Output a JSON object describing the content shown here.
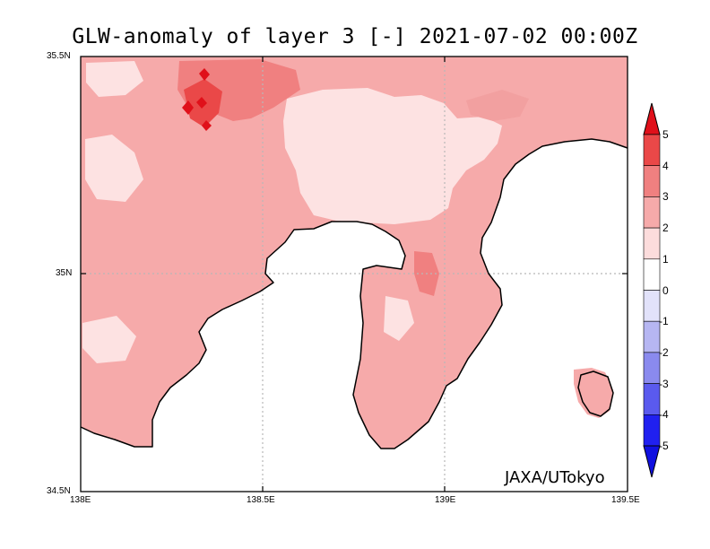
{
  "title": "GLW-anomaly of layer 3 [-] 2021-07-02 00:00Z",
  "credit": "JAXA/UTokyo",
  "axes": {
    "x_ticks": [
      "138E",
      "138.5E",
      "139E",
      "139.5E"
    ],
    "y_ticks": [
      "35.5N",
      "35N",
      "34.5N"
    ]
  },
  "colorbar": {
    "labels": [
      "5",
      "4",
      "3",
      "2",
      "1",
      "0",
      "-1",
      "-2",
      "-3",
      "-4",
      "-5"
    ],
    "colors": [
      "#e0101a",
      "#ea4848",
      "#f08080",
      "#f6aaaa",
      "#fcdcdc",
      "#ffffff",
      "#e2e2fa",
      "#b6b6f2",
      "#8a8aee",
      "#5a5aee",
      "#2020f0",
      "#1010e0"
    ]
  },
  "map_data": {
    "lon_range": [
      138.0,
      139.5
    ],
    "lat_range": [
      34.5,
      35.5
    ],
    "gridlines": {
      "lon": [
        138.5,
        139.0
      ],
      "lat": [
        35.0
      ]
    },
    "background_level": 2,
    "coastline_color": "#000000"
  }
}
